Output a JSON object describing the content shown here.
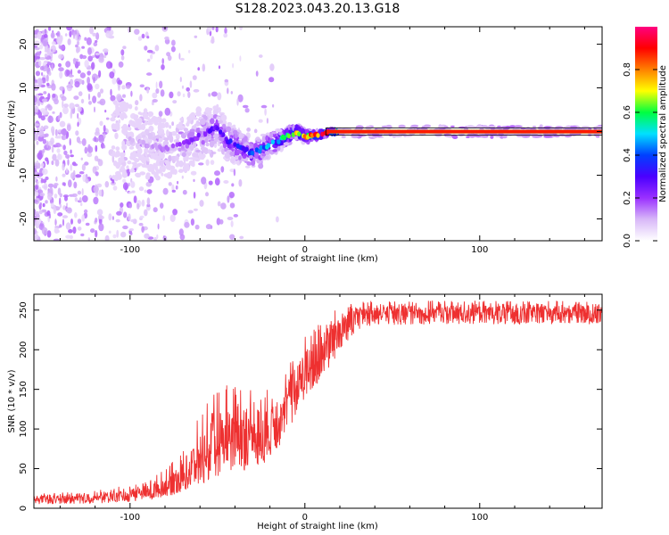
{
  "figure_title": "S128.2023.043.20.13.G18",
  "chart_data": [
    {
      "type": "heatmap",
      "title": "",
      "xlabel": "Height of straight line (km)",
      "ylabel": "Frequency (Hz)",
      "xlim": [
        -155,
        170
      ],
      "ylim": [
        -25,
        24
      ],
      "xticks": [
        -100,
        0,
        100
      ],
      "yticks": [
        -20,
        -10,
        0,
        10,
        20
      ],
      "x_tick_labels": [
        "-100",
        "0",
        "100"
      ],
      "y_tick_labels": [
        "-20",
        "-10",
        "0",
        "10",
        "20"
      ],
      "grid": false,
      "colormap": [
        "#ffffff",
        "#d8b8f8",
        "#9a30ff",
        "#4a00ff",
        "#0040ff",
        "#00e0ff",
        "#00ff40",
        "#ffff00",
        "#ff8000",
        "#ff0000",
        "#ff0080"
      ],
      "colorbar": {
        "label": "Normalized spectral amplitude",
        "range": [
          0.0,
          1.0
        ],
        "ticks": [
          0.0,
          0.2,
          0.4,
          0.6,
          0.8
        ],
        "tick_labels": [
          "0.0",
          "0.2",
          "0.4",
          "0.6",
          "0.8"
        ]
      },
      "peak_frequency_track": {
        "x": [
          -100,
          -90,
          -80,
          -70,
          -60,
          -50,
          -45,
          -40,
          -35,
          -30,
          -25,
          -20,
          -15,
          -10,
          -5,
          0,
          5,
          10,
          15,
          20,
          40,
          60,
          80,
          100,
          120,
          140,
          160,
          170
        ],
        "y": [
          -2,
          -3,
          -4,
          -3,
          -1,
          1,
          -2,
          -3,
          -4,
          -5,
          -4,
          -3,
          -2,
          -1,
          0,
          -1,
          -1,
          -0.5,
          0,
          0,
          0,
          0,
          0,
          0,
          0,
          0,
          0,
          0
        ],
        "amplitude": [
          0.1,
          0.12,
          0.15,
          0.2,
          0.25,
          0.3,
          0.3,
          0.35,
          0.35,
          0.4,
          0.45,
          0.5,
          0.55,
          0.6,
          0.7,
          0.8,
          0.85,
          0.9,
          0.95,
          0.95,
          0.95,
          0.95,
          0.95,
          0.95,
          0.95,
          0.95,
          0.95,
          0.95
        ]
      }
    },
    {
      "type": "line",
      "title": "",
      "xlabel": "Height of straight line (km)",
      "ylabel": "SNR (10 * v/v)",
      "xlim": [
        -155,
        170
      ],
      "ylim": [
        0,
        270
      ],
      "xticks": [
        -100,
        0,
        100
      ],
      "yticks": [
        0,
        50,
        100,
        150,
        200,
        250
      ],
      "x_tick_labels": [
        "-100",
        "0",
        "100"
      ],
      "y_tick_labels": [
        "0",
        "50",
        "100",
        "150",
        "200",
        "250"
      ],
      "grid": false,
      "series_color": "#ee3030",
      "envelope": {
        "x": [
          -155,
          -120,
          -100,
          -90,
          -80,
          -70,
          -60,
          -50,
          -40,
          -30,
          -20,
          -10,
          0,
          10,
          20,
          30,
          40,
          50,
          70,
          100,
          130,
          150,
          170
        ],
        "low": [
          5,
          6,
          8,
          10,
          14,
          20,
          30,
          40,
          45,
          50,
          60,
          95,
          140,
          160,
          200,
          225,
          230,
          230,
          232,
          232,
          232,
          232,
          232
        ],
        "high": [
          18,
          22,
          30,
          35,
          50,
          70,
          120,
          150,
          170,
          150,
          150,
          180,
          220,
          245,
          255,
          260,
          262,
          262,
          262,
          262,
          262,
          262,
          262
        ],
        "mean": [
          11,
          13,
          16,
          20,
          25,
          40,
          60,
          80,
          90,
          95,
          100,
          140,
          170,
          200,
          230,
          245,
          248,
          248,
          248,
          248,
          248,
          248,
          248
        ]
      }
    }
  ]
}
